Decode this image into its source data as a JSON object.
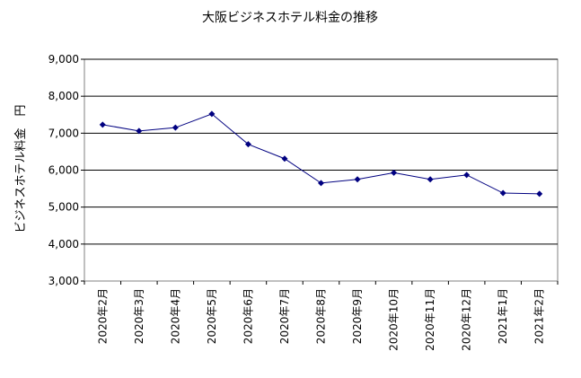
{
  "chart_data": {
    "type": "line",
    "title": "大阪ビジネスホテル料金の推移",
    "xlabel": "",
    "ylabel": "ビジネスホテル料金　円",
    "categories": [
      "2020年2月",
      "2020年3月",
      "2020年4月",
      "2020年5月",
      "2020年6月",
      "2020年7月",
      "2020年8月",
      "2020年9月",
      "2020年10月",
      "2020年11月",
      "2020年12月",
      "2021年1月",
      "2021年2月"
    ],
    "series": [
      {
        "values": [
          7230,
          7060,
          7150,
          7520,
          6700,
          6310,
          5650,
          5750,
          5930,
          5750,
          5870,
          5380,
          5360
        ]
      }
    ],
    "ylim": [
      3000,
      9000
    ],
    "yticks": [
      3000,
      4000,
      5000,
      6000,
      7000,
      8000,
      9000
    ],
    "ytick_labels": [
      "3,000",
      "4,000",
      "5,000",
      "6,000",
      "7,000",
      "8,000",
      "9,000"
    ],
    "grid": true,
    "legend": "none",
    "colors": {
      "line": "#000080",
      "marker": "#000080",
      "grid": "#000000",
      "frame": "#808080"
    }
  }
}
